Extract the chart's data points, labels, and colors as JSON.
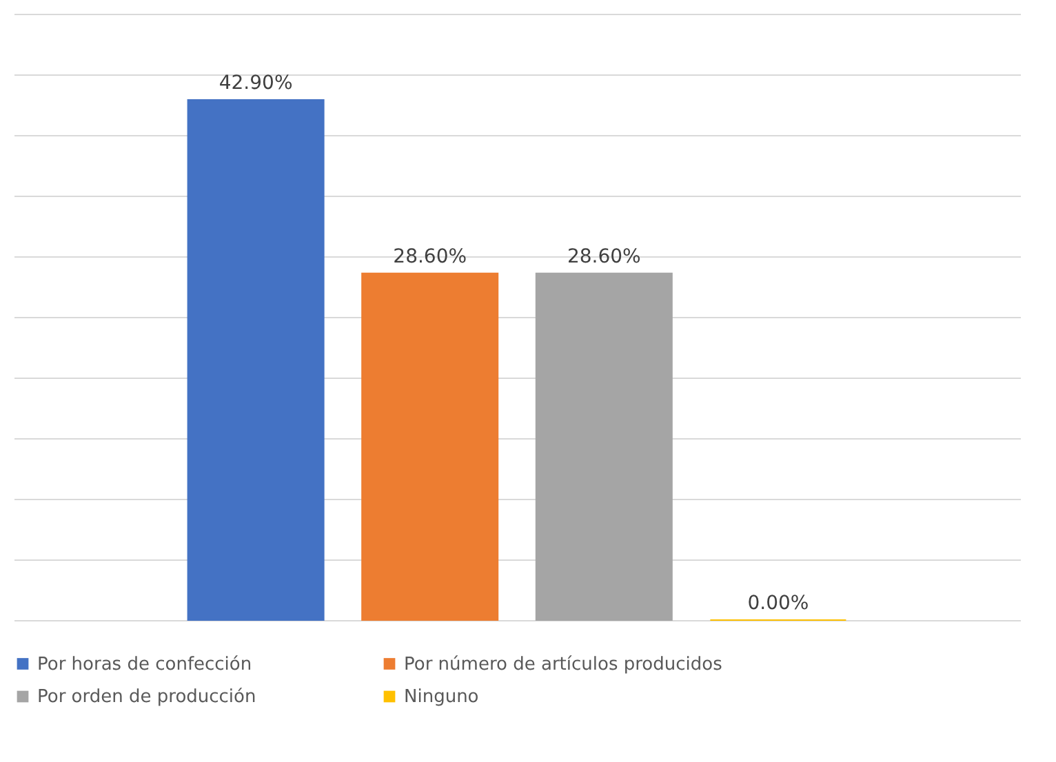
{
  "chart_data": {
    "type": "bar",
    "categories": [
      null
    ],
    "series": [
      {
        "name": "Por horas de confección",
        "color": "#4472c4",
        "values": [
          42.9
        ],
        "value_labels": [
          "42.90%"
        ]
      },
      {
        "name": "Por número de artículos producidos",
        "color": "#ed7d31",
        "values": [
          28.6
        ],
        "value_labels": [
          "28.60%"
        ]
      },
      {
        "name": "Por orden de producción",
        "color": "#a5a5a5",
        "values": [
          28.6
        ],
        "value_labels": [
          "28.60%"
        ]
      },
      {
        "name": "Ninguno",
        "color": "#ffc000",
        "values": [
          0
        ],
        "value_labels": [
          "0.00%"
        ]
      }
    ],
    "ylim": [
      0,
      50
    ],
    "yticks": [
      {
        "value": 0,
        "label": null
      },
      {
        "value": 5,
        "label": null
      },
      {
        "value": 10,
        "label": null
      },
      {
        "value": 15,
        "label": null
      },
      {
        "value": 20,
        "label": null
      },
      {
        "value": 25,
        "label": null
      },
      {
        "value": 30,
        "label": null
      },
      {
        "value": 35,
        "label": null
      },
      {
        "value": 40,
        "label": null
      },
      {
        "value": 45,
        "label": null
      },
      {
        "value": 50,
        "label": null
      }
    ],
    "grid": "y",
    "legend": "bottom",
    "tick_labels": false
  }
}
